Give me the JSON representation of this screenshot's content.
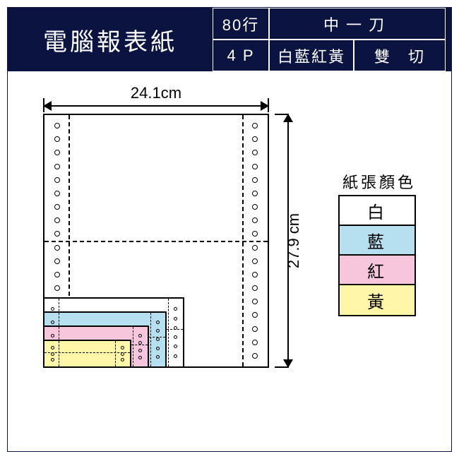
{
  "header": {
    "title": "電腦報表紙",
    "cells": {
      "lines": "80行",
      "cut_top": "中一刀",
      "ply": "4 P",
      "colors_short": "白藍紅黃",
      "cut_bottom": "雙　切"
    },
    "bg_color": "#0b1440",
    "text_color": "#ffffff"
  },
  "dimensions": {
    "width_label": "24.1cm",
    "height_label": "27.9 cm"
  },
  "diagram": {
    "sheet_bg": "#ffffff",
    "hole_count_per_side": 18,
    "mini_hole_count": 6,
    "stack_colors": [
      "#ffffff",
      "#b6e0ef",
      "#f7c6dd",
      "#fff6a8"
    ]
  },
  "legend": {
    "title": "紙張顏色",
    "items": [
      {
        "label": "白",
        "color": "#ffffff"
      },
      {
        "label": "藍",
        "color": "#b6e0ef"
      },
      {
        "label": "紅",
        "color": "#f7c6dd"
      },
      {
        "label": "黃",
        "color": "#fff6a8"
      }
    ]
  }
}
